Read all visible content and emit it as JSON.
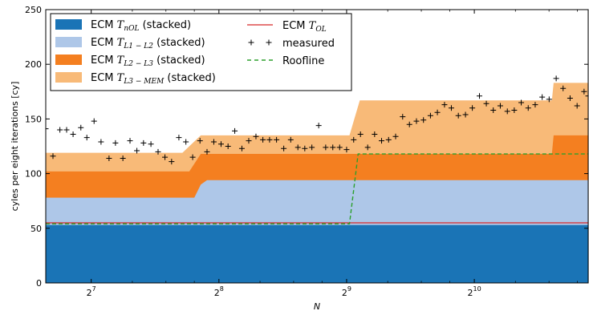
{
  "chart_data": {
    "type": "area",
    "xlabel": "N",
    "ylabel": "cyles per eight iterations [cy]",
    "x_scale": "log2",
    "xlim": [
      100,
      1900
    ],
    "ylim": [
      0,
      250
    ],
    "x_ticks": [
      {
        "value": 128,
        "base": "2",
        "exp": "7"
      },
      {
        "value": 256,
        "base": "2",
        "exp": "8"
      },
      {
        "value": 512,
        "base": "2",
        "exp": "9"
      },
      {
        "value": 1024,
        "base": "2",
        "exp": "10"
      }
    ],
    "y_ticks": [
      0,
      50,
      100,
      150,
      200,
      250
    ],
    "legend": {
      "placement": "top-left",
      "entries": [
        {
          "key": "tnol",
          "prefix": "ECM ",
          "var": "T",
          "sub": "nOL",
          "suffix": " (stacked)",
          "kind": "patch",
          "color": "#1a74b6"
        },
        {
          "key": "tl1l2",
          "prefix": "ECM ",
          "var": "T",
          "sub": "L1 − L2",
          "suffix": " (stacked)",
          "kind": "patch",
          "color": "#aec7e8"
        },
        {
          "key": "tl2l3",
          "prefix": "ECM ",
          "var": "T",
          "sub": "L2 − L3",
          "suffix": " (stacked)",
          "kind": "patch",
          "color": "#f47f20"
        },
        {
          "key": "tl3mem",
          "prefix": "ECM ",
          "var": "T",
          "sub": "L3 − MEM",
          "suffix": " (stacked)",
          "kind": "patch",
          "color": "#f8ba78"
        },
        {
          "key": "tol",
          "prefix": "ECM ",
          "var": "T",
          "sub": "OL",
          "suffix": "",
          "kind": "line",
          "color": "#d62728"
        },
        {
          "key": "measured",
          "prefix": "measured",
          "var": "",
          "sub": "",
          "suffix": "",
          "kind": "marker",
          "color": "#000000"
        },
        {
          "key": "roofline",
          "prefix": "Roofline",
          "var": "",
          "sub": "",
          "suffix": "",
          "kind": "dashed",
          "color": "#2ca02c"
        }
      ]
    },
    "stacked_series": [
      {
        "name": "ECM T_nOL (stacked)",
        "color": "#1a74b6",
        "x": [
          100,
          1900
        ],
        "y": [
          53,
          53
        ]
      },
      {
        "name": "ECM T_L1-L2 (stacked)",
        "color": "#aec7e8",
        "x": [
          100,
          224,
          232,
          240,
          1900
        ],
        "y": [
          78,
          78,
          90,
          94,
          94
        ]
      },
      {
        "name": "ECM T_L2-L3 (stacked)",
        "color": "#f47f20",
        "x": [
          100,
          218,
          232,
          552,
          555,
          1560,
          1575,
          1900
        ],
        "y": [
          102,
          102,
          118,
          118,
          118,
          118,
          135,
          135
        ]
      },
      {
        "name": "ECM T_L3-MEM (stacked)",
        "color": "#f8ba78",
        "x": [
          100,
          210,
          232,
          520,
          550,
          1560,
          1575,
          1900
        ],
        "y": [
          119,
          119,
          135,
          135,
          167,
          167,
          183,
          183
        ]
      }
    ],
    "tol_line": {
      "name": "ECM T_OL",
      "color": "#d62728",
      "x": [
        100,
        1900
      ],
      "y": [
        55,
        55
      ]
    },
    "roofline": {
      "name": "Roofline",
      "color": "#2ca02c",
      "x": [
        100,
        520,
        545,
        1900
      ],
      "y": [
        54,
        54,
        118,
        118
      ]
    },
    "measured": {
      "name": "measured",
      "x": [
        100,
        104,
        108,
        112,
        116,
        121,
        125,
        130,
        135,
        141,
        146,
        152,
        158,
        164,
        170,
        177,
        184,
        191,
        198,
        206,
        214,
        222,
        231,
        240,
        249,
        259,
        269,
        279,
        290,
        301,
        313,
        325,
        337,
        350,
        364,
        378,
        393,
        408,
        424,
        440,
        457,
        475,
        493,
        512,
        532,
        552,
        574,
        596,
        619,
        643,
        668,
        694,
        720,
        748,
        777,
        807,
        838,
        871,
        904,
        939,
        976,
        1013,
        1053,
        1093,
        1135,
        1179,
        1225,
        1272,
        1321,
        1372,
        1425,
        1480,
        1537,
        1597,
        1658,
        1722,
        1789,
        1858,
        1900
      ],
      "y": [
        141,
        116,
        140,
        140,
        136,
        142,
        133,
        148,
        129,
        114,
        128,
        114,
        130,
        121,
        128,
        127,
        120,
        115,
        111,
        133,
        129,
        115,
        130,
        120,
        129,
        127,
        125,
        139,
        123,
        130,
        134,
        131,
        131,
        131,
        123,
        131,
        124,
        123,
        124,
        144,
        124,
        124,
        124,
        122,
        131,
        136,
        124,
        136,
        130,
        131,
        134,
        152,
        145,
        148,
        149,
        153,
        156,
        163,
        160,
        153,
        154,
        160,
        171,
        164,
        158,
        162,
        157,
        158,
        165,
        160,
        163,
        170,
        168,
        187,
        178,
        169,
        162,
        175,
        171
      ]
    }
  }
}
